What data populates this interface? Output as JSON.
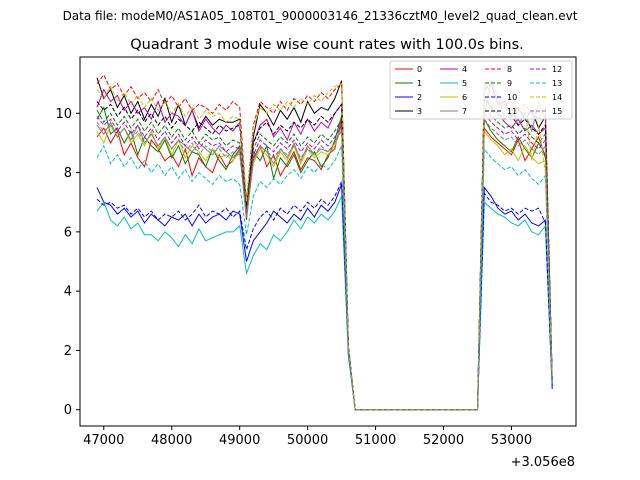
{
  "chart_data": {
    "type": "line",
    "suptitle": "Data file: modeM0/AS1A05_108T01_9000003146_21336cztM0_level2_quad_clean.evt",
    "title": "Quadrant 3 module wise count rates with 100.0s bins.",
    "xlabel": "",
    "ylabel": "",
    "x_offset_label": "+3.056e8",
    "xlim": [
      46650,
      53950
    ],
    "ylim": [
      -0.55,
      11.9
    ],
    "xticks": [
      47000,
      48000,
      49000,
      50000,
      51000,
      52000,
      53000
    ],
    "yticks": [
      0,
      2,
      4,
      6,
      8,
      10
    ],
    "legend_loc": "upper right",
    "legend_columns": 4,
    "x": [
      46900,
      47000,
      47100,
      47200,
      47300,
      47400,
      47500,
      47600,
      47700,
      47800,
      47900,
      48000,
      48100,
      48200,
      48300,
      48400,
      48500,
      48600,
      48700,
      48800,
      48900,
      49000,
      49100,
      49200,
      49300,
      49400,
      49500,
      49600,
      49700,
      49800,
      49900,
      50000,
      50100,
      50200,
      50300,
      50400,
      50500,
      50600,
      50700,
      50800,
      50900,
      51000,
      51100,
      51200,
      51300,
      51400,
      51500,
      51600,
      51700,
      51800,
      51900,
      52000,
      52100,
      52200,
      52300,
      52400,
      52500,
      52600,
      52700,
      52800,
      52900,
      53000,
      53100,
      53200,
      53300,
      53400,
      53500,
      53600
    ],
    "series": [
      {
        "name": "0",
        "color": "#ff0000",
        "dash": false,
        "values": [
          9.2,
          9.5,
          9.0,
          9.4,
          8.6,
          9.0,
          8.5,
          8.2,
          9.1,
          8.8,
          8.4,
          8.6,
          8.2,
          8.8,
          7.9,
          8.5,
          8.2,
          8.0,
          8.6,
          8.2,
          8.4,
          8.8,
          6.4,
          8.5,
          8.9,
          8.2,
          8.6,
          7.9,
          8.3,
          8.7,
          8.1,
          8.5,
          8.4,
          8.1,
          8.6,
          8.8,
          9.8,
          2.0,
          0,
          0,
          0,
          0,
          0,
          0,
          0,
          0,
          0,
          0,
          0,
          0,
          0,
          0,
          0,
          0,
          0,
          0,
          0,
          9.5,
          9.2,
          9.0,
          8.8,
          8.6,
          9.1,
          8.4,
          8.8,
          9.2,
          8.5,
          1.0
        ]
      },
      {
        "name": "1",
        "color": "#008000",
        "dash": false,
        "values": [
          9.8,
          10.2,
          9.3,
          9.5,
          9.0,
          9.4,
          8.6,
          9.2,
          8.9,
          8.7,
          9.1,
          8.5,
          8.9,
          8.3,
          8.7,
          8.6,
          8.2,
          8.8,
          8.4,
          8.1,
          8.6,
          8.9,
          6.6,
          8.7,
          8.4,
          8.9,
          7.8,
          8.5,
          8.2,
          8.6,
          8.0,
          8.4,
          8.7,
          8.2,
          8.5,
          9.1,
          9.9,
          2.1,
          0,
          0,
          0,
          0,
          0,
          0,
          0,
          0,
          0,
          0,
          0,
          0,
          0,
          0,
          0,
          0,
          0,
          0,
          0,
          9.8,
          9.4,
          9.1,
          8.9,
          8.7,
          9.2,
          8.8,
          8.5,
          9.0,
          8.6,
          0.9
        ]
      },
      {
        "name": "2",
        "color": "#0000ff",
        "dash": false,
        "values": [
          7.5,
          7.0,
          6.9,
          6.6,
          6.8,
          6.5,
          6.7,
          6.3,
          6.6,
          6.4,
          6.2,
          6.5,
          6.4,
          6.6,
          6.2,
          6.6,
          6.3,
          6.5,
          6.6,
          6.4,
          6.7,
          6.6,
          5.0,
          5.7,
          6.0,
          6.3,
          6.7,
          6.5,
          6.3,
          6.6,
          6.4,
          6.8,
          6.5,
          6.9,
          6.7,
          7.0,
          7.6,
          1.9,
          0,
          0,
          0,
          0,
          0,
          0,
          0,
          0,
          0,
          0,
          0,
          0,
          0,
          0,
          0,
          0,
          0,
          0,
          0,
          7.5,
          7.2,
          6.8,
          6.6,
          6.7,
          6.4,
          6.6,
          6.3,
          6.2,
          6.4,
          0.7
        ]
      },
      {
        "name": "3",
        "color": "#000000",
        "dash": false,
        "values": [
          11.2,
          10.5,
          10.8,
          10.2,
          10.6,
          10.0,
          10.4,
          9.8,
          10.3,
          9.9,
          10.5,
          9.7,
          10.3,
          9.6,
          10.1,
          9.5,
          9.9,
          9.6,
          9.8,
          9.7,
          9.7,
          9.8,
          6.7,
          9.2,
          10.3,
          10.0,
          9.6,
          10.1,
          9.8,
          10.2,
          9.7,
          10.4,
          10.0,
          10.2,
          10.1,
          10.5,
          11.1,
          2.1,
          0,
          0,
          0,
          0,
          0,
          0,
          0,
          0,
          0,
          0,
          0,
          0,
          0,
          0,
          0,
          0,
          0,
          0,
          0,
          10.8,
          11.0,
          10.3,
          10.4,
          9.9,
          10.2,
          9.8,
          10.1,
          9.5,
          9.9,
          1.0
        ]
      },
      {
        "name": "4",
        "color": "#bf00bf",
        "dash": false,
        "values": [
          10.2,
          10.8,
          10.4,
          10.6,
          10.1,
          10.4,
          10.0,
          10.2,
          9.8,
          10.4,
          9.7,
          10.0,
          9.9,
          9.6,
          10.1,
          9.4,
          9.8,
          9.5,
          9.3,
          9.6,
          9.4,
          9.7,
          6.9,
          9.0,
          9.6,
          9.8,
          9.2,
          9.5,
          9.1,
          9.7,
          9.3,
          9.8,
          9.4,
          9.7,
          9.5,
          10.0,
          10.3,
          2.0,
          0,
          0,
          0,
          0,
          0,
          0,
          0,
          0,
          0,
          0,
          0,
          0,
          0,
          0,
          0,
          0,
          0,
          0,
          0,
          10.5,
          10.2,
          10.0,
          9.7,
          9.5,
          9.8,
          9.4,
          9.6,
          9.3,
          9.5,
          0.9
        ]
      },
      {
        "name": "5",
        "color": "#00bfbf",
        "dash": false,
        "values": [
          6.7,
          7.0,
          6.4,
          6.2,
          6.5,
          6.1,
          6.3,
          5.9,
          5.9,
          5.7,
          6.0,
          5.8,
          5.5,
          5.9,
          5.6,
          6.1,
          5.7,
          5.8,
          5.9,
          6.0,
          6.0,
          6.2,
          4.6,
          5.2,
          5.6,
          5.4,
          5.9,
          5.7,
          6.0,
          6.4,
          6.1,
          6.5,
          6.3,
          6.6,
          6.4,
          6.7,
          7.2,
          1.8,
          0,
          0,
          0,
          0,
          0,
          0,
          0,
          0,
          0,
          0,
          0,
          0,
          0,
          0,
          0,
          0,
          0,
          0,
          0,
          7.0,
          6.8,
          6.6,
          6.5,
          6.3,
          6.2,
          6.4,
          6.0,
          5.9,
          6.2,
          0.8
        ]
      },
      {
        "name": "6",
        "color": "#bfbf00",
        "dash": false,
        "values": [
          9.4,
          9.0,
          9.6,
          9.2,
          9.5,
          9.0,
          9.3,
          8.9,
          9.4,
          8.8,
          9.2,
          8.6,
          9.1,
          8.5,
          8.9,
          8.7,
          8.4,
          8.8,
          8.5,
          8.6,
          8.4,
          8.7,
          6.5,
          8.3,
          8.8,
          8.6,
          8.2,
          8.7,
          8.4,
          8.9,
          8.3,
          8.8,
          8.5,
          8.7,
          8.6,
          8.9,
          9.5,
          2.0,
          0,
          0,
          0,
          0,
          0,
          0,
          0,
          0,
          0,
          0,
          0,
          0,
          0,
          0,
          0,
          0,
          0,
          0,
          0,
          9.4,
          9.1,
          8.9,
          8.6,
          8.8,
          8.4,
          8.9,
          8.5,
          8.3,
          8.4,
          0.9
        ]
      },
      {
        "name": "7",
        "color": "#808080",
        "dash": false,
        "values": [
          9.6,
          9.3,
          9.7,
          9.2,
          9.5,
          9.1,
          9.6,
          9.0,
          9.3,
          8.9,
          9.2,
          8.8,
          9.1,
          8.9,
          8.7,
          9.0,
          8.8,
          8.6,
          8.9,
          8.7,
          8.5,
          8.8,
          6.6,
          8.4,
          8.9,
          8.7,
          8.3,
          8.8,
          8.5,
          9.0,
          8.4,
          8.9,
          8.6,
          8.8,
          8.7,
          9.0,
          9.6,
          2.0,
          0,
          0,
          0,
          0,
          0,
          0,
          0,
          0,
          0,
          0,
          0,
          0,
          0,
          0,
          0,
          0,
          0,
          0,
          0,
          10.0,
          11.1,
          10.6,
          9.8,
          10.2,
          9.6,
          10.0,
          9.4,
          10.4,
          9.8,
          1.0
        ]
      },
      {
        "name": "8",
        "color": "#ff0000",
        "dash": true,
        "values": [
          11.0,
          11.3,
          10.8,
          11.0,
          10.6,
          10.9,
          10.5,
          10.7,
          10.4,
          10.8,
          10.3,
          10.6,
          10.2,
          10.5,
          10.1,
          10.3,
          10.2,
          10.0,
          10.3,
          10.1,
          10.4,
          10.2,
          7.0,
          9.6,
          10.4,
          10.2,
          10.0,
          10.4,
          10.1,
          10.5,
          10.3,
          10.6,
          10.4,
          10.7,
          10.5,
          10.8,
          11.0,
          2.2,
          0,
          0,
          0,
          0,
          0,
          0,
          0,
          0,
          0,
          0,
          0,
          0,
          0,
          0,
          0,
          0,
          0,
          0,
          0,
          11.0,
          10.7,
          10.5,
          10.3,
          10.4,
          10.1,
          10.3,
          10.0,
          9.8,
          10.2,
          1.1
        ]
      },
      {
        "name": "9",
        "color": "#008000",
        "dash": true,
        "values": [
          10.1,
          9.7,
          10.0,
          9.6,
          9.9,
          9.5,
          9.8,
          9.4,
          9.7,
          9.3,
          9.6,
          9.2,
          9.5,
          9.1,
          9.4,
          9.0,
          9.3,
          9.1,
          9.2,
          8.9,
          9.1,
          9.0,
          6.8,
          8.8,
          9.3,
          9.1,
          8.9,
          9.2,
          9.0,
          9.3,
          8.9,
          9.2,
          9.0,
          9.3,
          9.1,
          9.4,
          9.8,
          2.1,
          0,
          0,
          0,
          0,
          0,
          0,
          0,
          0,
          0,
          0,
          0,
          0,
          0,
          0,
          0,
          0,
          0,
          0,
          0,
          10.2,
          9.9,
          9.7,
          9.5,
          9.6,
          9.3,
          9.5,
          9.2,
          9.0,
          9.3,
          1.0
        ]
      },
      {
        "name": "10",
        "color": "#0000ff",
        "dash": true,
        "values": [
          7.1,
          6.9,
          7.0,
          6.8,
          6.9,
          6.6,
          6.8,
          6.5,
          6.7,
          6.4,
          6.6,
          6.5,
          6.7,
          6.4,
          6.6,
          6.9,
          6.5,
          6.7,
          6.6,
          6.8,
          6.5,
          6.7,
          5.4,
          6.1,
          6.5,
          6.7,
          6.4,
          6.8,
          6.6,
          6.9,
          6.7,
          7.0,
          6.8,
          7.1,
          6.9,
          7.2,
          7.7,
          1.9,
          0,
          0,
          0,
          0,
          0,
          0,
          0,
          0,
          0,
          0,
          0,
          0,
          0,
          0,
          0,
          0,
          0,
          0,
          0,
          7.3,
          7.0,
          6.9,
          6.7,
          6.8,
          6.6,
          6.8,
          6.7,
          6.8,
          6.3,
          0.8
        ]
      },
      {
        "name": "11",
        "color": "#000000",
        "dash": true,
        "values": [
          10.4,
          10.1,
          10.3,
          9.9,
          10.2,
          9.8,
          10.1,
          9.7,
          10.0,
          9.6,
          9.9,
          9.5,
          9.8,
          9.6,
          9.4,
          9.7,
          9.5,
          9.3,
          9.6,
          9.4,
          9.5,
          9.6,
          6.9,
          9.0,
          9.5,
          9.7,
          9.3,
          9.6,
          9.4,
          9.7,
          9.5,
          9.8,
          9.6,
          9.9,
          9.7,
          10.0,
          10.3,
          2.1,
          0,
          0,
          0,
          0,
          0,
          0,
          0,
          0,
          0,
          0,
          0,
          0,
          0,
          0,
          0,
          0,
          0,
          0,
          0,
          10.6,
          10.2,
          10.0,
          9.8,
          9.9,
          9.6,
          9.8,
          9.5,
          9.3,
          9.6,
          1.0
        ]
      },
      {
        "name": "12",
        "color": "#bf00bf",
        "dash": true,
        "values": [
          9.9,
          9.6,
          9.8,
          9.4,
          9.7,
          9.3,
          9.6,
          9.2,
          9.5,
          9.1,
          9.4,
          9.0,
          9.3,
          8.9,
          9.2,
          8.8,
          9.1,
          8.9,
          9.0,
          8.7,
          8.9,
          8.8,
          6.6,
          8.6,
          9.1,
          8.9,
          8.7,
          9.0,
          8.8,
          9.1,
          8.7,
          9.0,
          8.8,
          9.1,
          8.9,
          9.2,
          9.6,
          2.0,
          0,
          0,
          0,
          0,
          0,
          0,
          0,
          0,
          0,
          0,
          0,
          0,
          0,
          0,
          0,
          0,
          0,
          0,
          0,
          10.0,
          9.7,
          9.5,
          9.3,
          9.4,
          9.1,
          9.3,
          9.0,
          8.8,
          9.1,
          0.9
        ]
      },
      {
        "name": "13",
        "color": "#00bfbf",
        "dash": true,
        "values": [
          8.5,
          8.9,
          8.3,
          8.6,
          8.2,
          8.5,
          8.1,
          8.4,
          8.0,
          8.3,
          7.9,
          8.2,
          7.8,
          8.1,
          7.7,
          8.0,
          7.8,
          7.6,
          7.9,
          7.7,
          7.8,
          7.6,
          5.9,
          7.2,
          7.7,
          7.5,
          7.8,
          7.6,
          7.9,
          8.1,
          7.8,
          8.2,
          8.0,
          8.3,
          8.1,
          8.4,
          8.9,
          2.0,
          0,
          0,
          0,
          0,
          0,
          0,
          0,
          0,
          0,
          0,
          0,
          0,
          0,
          0,
          0,
          0,
          0,
          0,
          0,
          8.8,
          8.5,
          8.3,
          8.1,
          8.2,
          7.9,
          8.1,
          7.8,
          7.6,
          7.9,
          0.9
        ]
      },
      {
        "name": "14",
        "color": "#bfbf00",
        "dash": true,
        "values": [
          10.8,
          10.5,
          10.9,
          10.4,
          10.7,
          10.3,
          10.6,
          10.2,
          10.5,
          10.1,
          10.4,
          10.0,
          10.3,
          9.9,
          10.2,
          9.8,
          10.1,
          9.9,
          10.0,
          9.7,
          9.9,
          9.8,
          7.0,
          9.5,
          10.2,
          10.0,
          10.3,
          10.1,
          10.4,
          10.2,
          10.5,
          10.3,
          10.6,
          10.4,
          10.7,
          10.9,
          11.0,
          2.1,
          0,
          0,
          0,
          0,
          0,
          0,
          0,
          0,
          0,
          0,
          0,
          0,
          0,
          0,
          0,
          0,
          0,
          0,
          0,
          10.9,
          10.6,
          10.4,
          10.2,
          10.3,
          10.0,
          10.2,
          8.4,
          9.6,
          8.0,
          1.0
        ]
      },
      {
        "name": "15",
        "color": "#808080",
        "dash": true,
        "values": [
          9.7,
          9.4,
          9.6,
          9.2,
          9.5,
          9.1,
          9.4,
          9.0,
          9.3,
          8.9,
          9.2,
          8.8,
          9.1,
          8.7,
          9.0,
          8.6,
          8.9,
          8.7,
          8.8,
          8.5,
          8.7,
          8.6,
          6.5,
          8.4,
          8.9,
          8.7,
          8.5,
          8.8,
          8.6,
          8.9,
          8.5,
          8.8,
          8.6,
          8.9,
          8.7,
          9.0,
          9.4,
          2.0,
          0,
          0,
          0,
          0,
          0,
          0,
          0,
          0,
          0,
          0,
          0,
          0,
          0,
          0,
          0,
          0,
          0,
          0,
          0,
          9.8,
          9.5,
          9.3,
          9.1,
          9.2,
          8.9,
          9.1,
          8.8,
          8.6,
          8.9,
          0.9
        ]
      }
    ]
  }
}
